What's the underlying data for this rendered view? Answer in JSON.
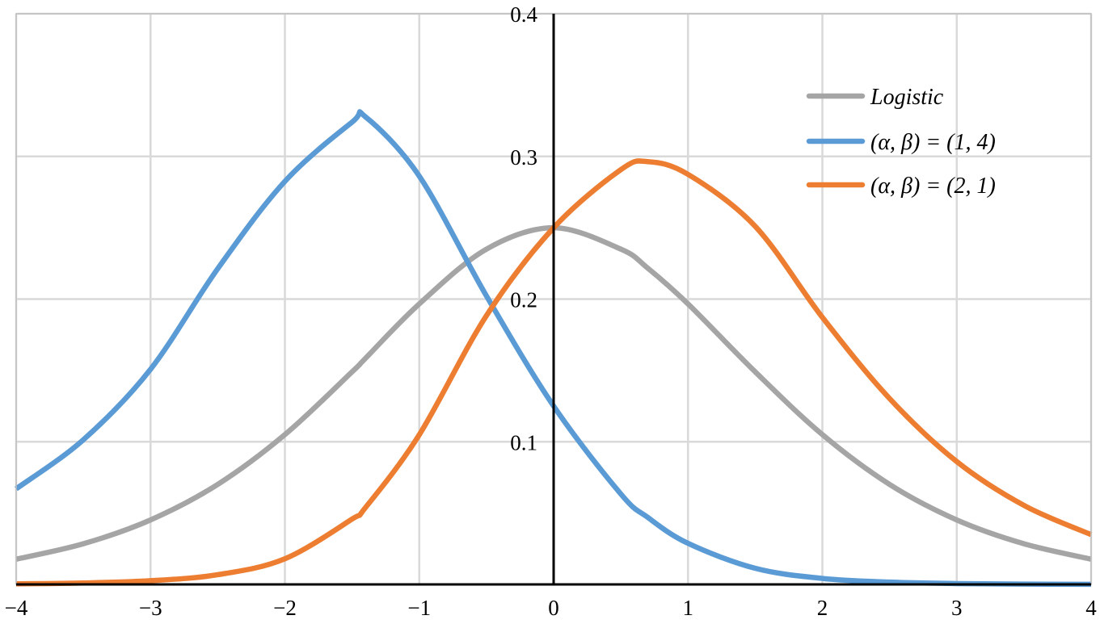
{
  "chart_data": {
    "type": "line",
    "title": "",
    "xlabel": "",
    "ylabel": "",
    "xlim": [
      -4,
      4
    ],
    "ylim": [
      0,
      0.4
    ],
    "x_ticks": [
      -4,
      -3,
      -2,
      -1,
      0,
      1,
      2,
      3,
      4
    ],
    "x_tick_labels": [
      "−4",
      "−3",
      "−2",
      "−1",
      "0",
      "1",
      "2",
      "3",
      "4"
    ],
    "y_ticks": [
      0.1,
      0.2,
      0.3,
      0.4
    ],
    "y_tick_labels": [
      "0.1",
      "0.2",
      "0.3",
      "0.4"
    ],
    "grid": true,
    "legend_position": "top-right",
    "x": [
      -4,
      -3.5,
      -3,
      -2.5,
      -2,
      -1.5,
      -1.4,
      -1,
      -0.5,
      0,
      0.5,
      0.7,
      1,
      1.5,
      2,
      2.5,
      3,
      3.5,
      4
    ],
    "series": [
      {
        "name": "Logistic",
        "color": "#a5a5a5",
        "values": [
          0.0177,
          0.0285,
          0.0452,
          0.0701,
          0.105,
          0.149,
          0.1585,
          0.1966,
          0.235,
          0.25,
          0.235,
          0.2217,
          0.1966,
          0.149,
          0.105,
          0.0701,
          0.0452,
          0.0285,
          0.0177
        ]
      },
      {
        "name": "(α, β) = (1, 4)",
        "color": "#5b9bd5",
        "values": [
          0.067,
          0.1014,
          0.1508,
          0.2213,
          0.2825,
          0.324,
          0.3277,
          0.2862,
          0.2022,
          0.125,
          0.0634,
          0.047,
          0.0288,
          0.0113,
          0.0042,
          0.0016,
          0.0006,
          0.0002,
          0.0001
        ]
      },
      {
        "name": "(α, β) = (2, 1)",
        "color": "#ed7d31",
        "values": [
          0.0004,
          0.001,
          0.0026,
          0.0068,
          0.018,
          0.0458,
          0.0539,
          0.1049,
          0.1884,
          0.25,
          0.2907,
          0.2963,
          0.2874,
          0.251,
          0.1872,
          0.1303,
          0.0861,
          0.0554,
          0.0349
        ]
      }
    ]
  }
}
